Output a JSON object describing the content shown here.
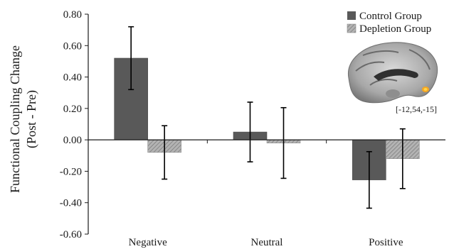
{
  "chart_data": {
    "type": "bar",
    "categories": [
      "Negative",
      "Neutral",
      "Positive"
    ],
    "series": [
      {
        "name": "Control Group",
        "values": [
          0.52,
          0.05,
          -0.255
        ],
        "errors": [
          0.2,
          0.19,
          0.18
        ],
        "color": "#595959",
        "pattern": "solid"
      },
      {
        "name": "Depletion Group",
        "values": [
          -0.08,
          -0.02,
          -0.12
        ],
        "errors": [
          0.17,
          0.225,
          0.19
        ],
        "color": "#a6a6a6",
        "pattern": "hatched"
      }
    ],
    "ylim": [
      -0.6,
      0.8
    ],
    "yticks": [
      -0.6,
      -0.4,
      -0.2,
      0.0,
      0.2,
      0.4,
      0.6,
      0.8
    ],
    "ytick_labels": [
      "-0.60",
      "-0.40",
      "-0.20",
      "0.00",
      "0.20",
      "0.40",
      "0.60",
      "0.80"
    ],
    "ylabel_line1": "Functional Coupling Change",
    "ylabel_line2": "(Post - Pre)",
    "xlabel": "",
    "legend_position": "top-right",
    "inset": {
      "type": "brain-sagittal-image",
      "coordinate_label": "[-12,54,-15]",
      "highlight_color": "#f5a623"
    }
  }
}
